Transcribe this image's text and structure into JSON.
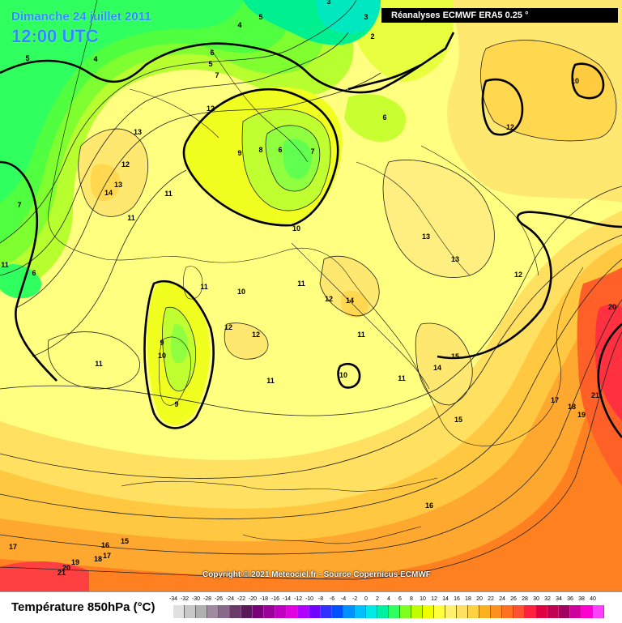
{
  "header": {
    "date": "Dimanche 24 juillet 2011",
    "time": "12:00 UTC",
    "source": "Réanalyses ECMWF ERA5 0.25 °"
  },
  "footer": {
    "copyright": "Copyright © 2021 Meteociel.fr - Source Copernicus ECMWF"
  },
  "legend": {
    "title": "Température 850hPa (°C)",
    "ticks": [
      "-34",
      "-32",
      "-30",
      "-28",
      "-26",
      "-24",
      "-22",
      "-20",
      "-18",
      "-16",
      "-14",
      "-12",
      "-10",
      "-8",
      "-6",
      "-4",
      "-2",
      "0",
      "2",
      "4",
      "6",
      "8",
      "10",
      "12",
      "14",
      "16",
      "18",
      "20",
      "22",
      "24",
      "26",
      "28",
      "30",
      "32",
      "34",
      "36",
      "38",
      "40"
    ],
    "colors": [
      "#e0e0e0",
      "#c8c8c8",
      "#b0b0b0",
      "#a08aa0",
      "#8a6a8a",
      "#6a3a6a",
      "#5a1a5a",
      "#780078",
      "#9a009a",
      "#c000c0",
      "#e000e0",
      "#b000ff",
      "#7000ff",
      "#3030ff",
      "#0050ff",
      "#0090ff",
      "#00c0ff",
      "#00e8e8",
      "#00f0a0",
      "#30ff60",
      "#80ff20",
      "#c0ff00",
      "#f0ff00",
      "#ffff40",
      "#fff070",
      "#ffe060",
      "#ffd040",
      "#ffb020",
      "#ff9020",
      "#ff7020",
      "#ff5030",
      "#ff2040",
      "#e00040",
      "#c00050",
      "#a00060",
      "#d000a0",
      "#ff00d0",
      "#ff40ff"
    ]
  },
  "contour_labels": [
    "3",
    "5",
    "4",
    "3",
    "2",
    "5",
    "4",
    "6",
    "5",
    "7",
    "12",
    "10",
    "12",
    "13",
    "8",
    "9",
    "6",
    "7",
    "12",
    "13",
    "14",
    "11",
    "11",
    "6",
    "7",
    "10",
    "13",
    "11",
    "13",
    "12",
    "6",
    "11",
    "10",
    "12",
    "11",
    "12",
    "14",
    "20",
    "11",
    "12",
    "9",
    "10",
    "15",
    "11",
    "14",
    "10",
    "11",
    "11",
    "9",
    "17",
    "18",
    "21",
    "19",
    "15",
    "16",
    "17",
    "15",
    "16",
    "21",
    "20",
    "19",
    "18",
    "17"
  ]
}
